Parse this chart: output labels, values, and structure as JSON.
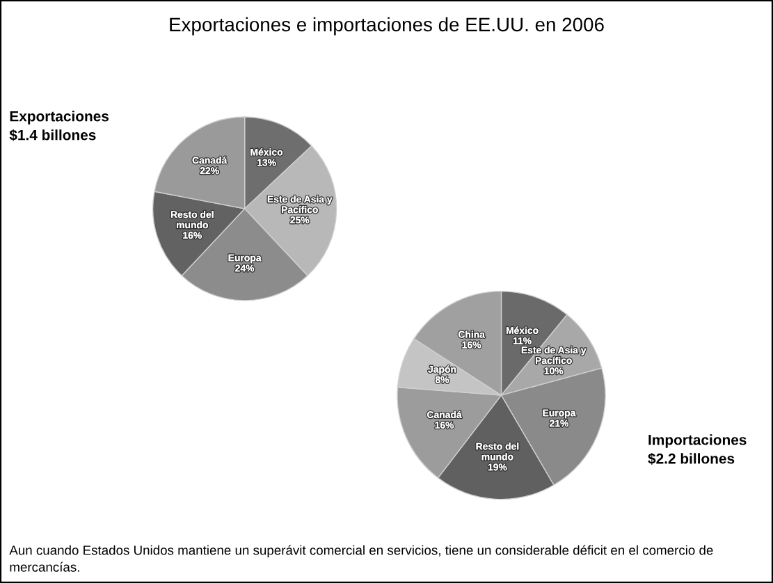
{
  "chart_data": [
    {
      "type": "pie",
      "title": "Exportaciones e importaciones de EE.UU. en 2006",
      "annotations": [
        "Exportaciones\n$1.4 billones"
      ],
      "categories": [
        "México",
        "Este de Asia y\nPacífico",
        "Europa",
        "Resto del\nmundo",
        "Canadá"
      ],
      "values": [
        13,
        25,
        24,
        16,
        22
      ],
      "value_labels": [
        "13%",
        "25%",
        "24%",
        "16%",
        "22%"
      ],
      "colors": [
        "#6e6e6e",
        "#b8b8b8",
        "#8c8c8c",
        "#626262",
        "#9a9a9a"
      ]
    },
    {
      "type": "pie",
      "annotations": [
        "Importaciones\n$2.2 billones",
        "Aun cuando Estados Unidos mantiene un superávit comercial en servicios, tiene un considerable déficit en el comercio de mercancías."
      ],
      "categories": [
        "México",
        "Este de Asia y\nPacífico",
        "Europa",
        "Resto del\nmundo",
        "Canadá",
        "Japón",
        "China"
      ],
      "values": [
        11,
        10,
        21,
        19,
        16,
        8,
        16
      ],
      "value_labels": [
        "11%",
        "10%",
        "21%",
        "19%",
        "16%",
        "8%",
        "16%"
      ],
      "colors": [
        "#6a6a6a",
        "#a8a8a8",
        "#8a8a8a",
        "#606060",
        "#9c9c9c",
        "#c4c4c4",
        "#a0a0a0"
      ]
    }
  ]
}
